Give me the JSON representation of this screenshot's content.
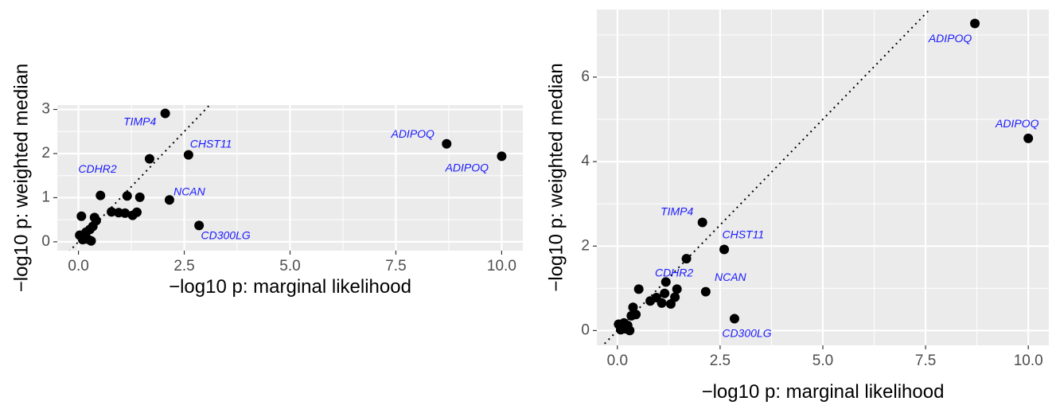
{
  "chart_data": [
    {
      "type": "scatter",
      "xlabel": "−log10 p: marginal likelihood",
      "ylabel": "−log10 p: weighted median",
      "xlim": [
        -0.5,
        10.5
      ],
      "ylim": [
        -0.2,
        3.1
      ],
      "x_ticks": [
        0.0,
        2.5,
        5.0,
        7.5,
        10.0
      ],
      "x_tick_labels": [
        "0.0",
        "2.5",
        "5.0",
        "7.5",
        "10.0"
      ],
      "y_ticks": [
        0,
        1,
        2,
        3
      ],
      "y_tick_labels": [
        "0",
        "1",
        "2",
        "3"
      ],
      "grid": true,
      "reference_line": {
        "slope": 1,
        "intercept": 0,
        "style": "dotted"
      },
      "points": [
        {
          "x": 0.03,
          "y": 0.15
        },
        {
          "x": 0.07,
          "y": 0.58
        },
        {
          "x": 0.1,
          "y": 0.05
        },
        {
          "x": 0.14,
          "y": 0.12
        },
        {
          "x": 0.18,
          "y": 0.22
        },
        {
          "x": 0.22,
          "y": 0.06
        },
        {
          "x": 0.27,
          "y": 0.28
        },
        {
          "x": 0.3,
          "y": 0.02
        },
        {
          "x": 0.34,
          "y": 0.35
        },
        {
          "x": 0.38,
          "y": 0.55
        },
        {
          "x": 0.42,
          "y": 0.48
        },
        {
          "x": 0.52,
          "y": 1.05
        },
        {
          "x": 0.78,
          "y": 0.68
        },
        {
          "x": 0.95,
          "y": 0.66
        },
        {
          "x": 1.1,
          "y": 0.65
        },
        {
          "x": 1.15,
          "y": 1.04
        },
        {
          "x": 1.28,
          "y": 0.6
        },
        {
          "x": 1.38,
          "y": 0.67
        },
        {
          "x": 1.45,
          "y": 1.01
        },
        {
          "x": 1.68,
          "y": 1.88
        },
        {
          "x": 2.05,
          "y": 2.91
        },
        {
          "x": 2.15,
          "y": 0.95
        },
        {
          "x": 2.6,
          "y": 1.97
        },
        {
          "x": 2.85,
          "y": 0.37
        },
        {
          "x": 8.7,
          "y": 2.22
        },
        {
          "x": 10.0,
          "y": 1.94
        }
      ],
      "annotations": [
        {
          "text": "TIMP4",
          "x": 1.45,
          "y": 2.71
        },
        {
          "text": "CHST11",
          "x": 3.13,
          "y": 2.2
        },
        {
          "text": "CDHR2",
          "x": 0.45,
          "y": 1.63
        },
        {
          "text": "NCAN",
          "x": 2.62,
          "y": 1.12
        },
        {
          "text": "CD300LG",
          "x": 3.48,
          "y": 0.13
        },
        {
          "text": "ADIPOQ",
          "x": 7.9,
          "y": 2.43
        },
        {
          "text": "ADIPOQ",
          "x": 9.18,
          "y": 1.66
        }
      ]
    },
    {
      "type": "scatter",
      "xlabel": "−log10 p: marginal likelihood",
      "ylabel": "−log10 p: weighted median",
      "xlim": [
        -0.5,
        10.5
      ],
      "ylim": [
        -0.35,
        7.6
      ],
      "x_ticks": [
        0.0,
        2.5,
        5.0,
        7.5,
        10.0
      ],
      "x_tick_labels": [
        "0.0",
        "2.5",
        "5.0",
        "7.5",
        "10.0"
      ],
      "y_ticks": [
        0,
        2,
        4,
        6
      ],
      "y_tick_labels": [
        "0",
        "2",
        "4",
        "6"
      ],
      "grid": true,
      "reference_line": {
        "slope": 1,
        "intercept": 0,
        "style": "dotted"
      },
      "points": [
        {
          "x": 0.03,
          "y": 0.15
        },
        {
          "x": 0.08,
          "y": 0.02
        },
        {
          "x": 0.12,
          "y": 0.08
        },
        {
          "x": 0.16,
          "y": 0.18
        },
        {
          "x": 0.2,
          "y": 0.04
        },
        {
          "x": 0.25,
          "y": 0.12
        },
        {
          "x": 0.3,
          "y": 0.0
        },
        {
          "x": 0.34,
          "y": 0.35
        },
        {
          "x": 0.38,
          "y": 0.55
        },
        {
          "x": 0.45,
          "y": 0.38
        },
        {
          "x": 0.52,
          "y": 0.98
        },
        {
          "x": 0.8,
          "y": 0.7
        },
        {
          "x": 0.95,
          "y": 0.78
        },
        {
          "x": 1.08,
          "y": 0.65
        },
        {
          "x": 1.15,
          "y": 0.88
        },
        {
          "x": 1.18,
          "y": 1.15
        },
        {
          "x": 1.3,
          "y": 0.63
        },
        {
          "x": 1.4,
          "y": 0.79
        },
        {
          "x": 1.45,
          "y": 0.98
        },
        {
          "x": 1.68,
          "y": 1.7
        },
        {
          "x": 2.07,
          "y": 2.56
        },
        {
          "x": 2.15,
          "y": 0.92
        },
        {
          "x": 2.6,
          "y": 1.92
        },
        {
          "x": 2.85,
          "y": 0.28
        },
        {
          "x": 8.7,
          "y": 7.27
        },
        {
          "x": 10.0,
          "y": 4.55
        }
      ],
      "annotations": [
        {
          "text": "TIMP4",
          "x": 1.45,
          "y": 2.8
        },
        {
          "text": "CHST11",
          "x": 3.06,
          "y": 2.25
        },
        {
          "text": "CDHR2",
          "x": 1.38,
          "y": 1.35
        },
        {
          "text": "NCAN",
          "x": 2.75,
          "y": 1.25
        },
        {
          "text": "CD300LG",
          "x": 3.15,
          "y": -0.08
        },
        {
          "text": "ADIPOQ",
          "x": 8.1,
          "y": 6.9
        },
        {
          "text": "ADIPOQ",
          "x": 9.73,
          "y": 4.88
        }
      ]
    }
  ]
}
